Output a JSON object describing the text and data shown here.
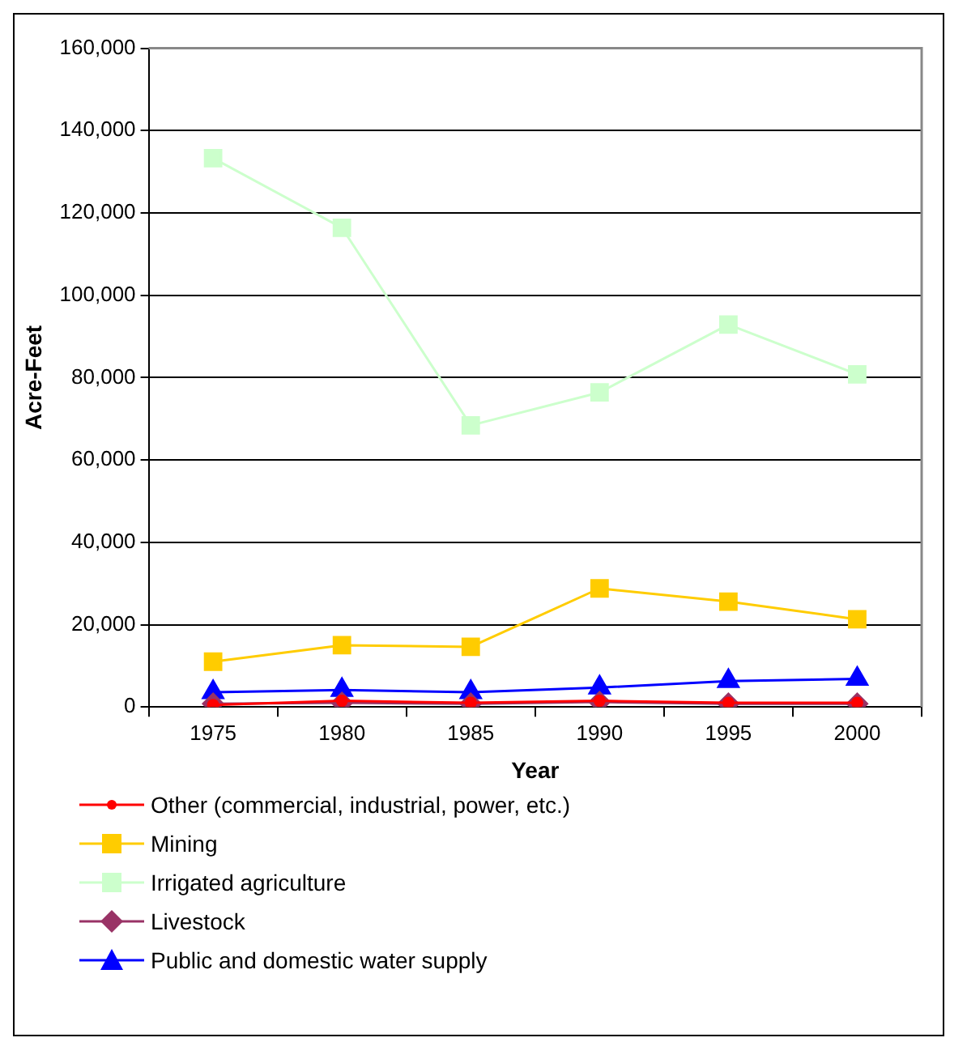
{
  "chart_data": {
    "type": "line",
    "xlabel": "Year",
    "ylabel": "Acre-Feet",
    "categories": [
      "1975",
      "1980",
      "1985",
      "1990",
      "1995",
      "2000"
    ],
    "ylim": [
      0,
      160000
    ],
    "yticks": [
      {
        "value": 0,
        "label": "0"
      },
      {
        "value": 20000,
        "label": "20,000"
      },
      {
        "value": 40000,
        "label": "40,000"
      },
      {
        "value": 60000,
        "label": "60,000"
      },
      {
        "value": 80000,
        "label": "80,000"
      },
      {
        "value": 100000,
        "label": "100,000"
      },
      {
        "value": 120000,
        "label": "120,000"
      },
      {
        "value": 140000,
        "label": "140,000"
      },
      {
        "value": 160000,
        "label": "160,000"
      }
    ],
    "grid": "y",
    "legend": "bottom",
    "series": [
      {
        "name": "Other (commercial, industrial, power, etc.)",
        "color": "#ff0000",
        "marker": "circle",
        "values": [
          500,
          1500,
          1000,
          1500,
          1000,
          1000
        ]
      },
      {
        "name": "Mining",
        "color": "#ffcc00",
        "marker": "square",
        "values": [
          11000,
          15000,
          14600,
          28800,
          25600,
          21300
        ]
      },
      {
        "name": "Irrigated agriculture",
        "color": "#ccffcc",
        "marker": "square",
        "values": [
          133300,
          116400,
          68400,
          76400,
          92900,
          80800
        ]
      },
      {
        "name": "Livestock",
        "color": "#993366",
        "marker": "diamond",
        "values": [
          800,
          1000,
          800,
          1200,
          800,
          800
        ]
      },
      {
        "name": "Public and domestic water supply",
        "color": "#0000ff",
        "marker": "triangle",
        "values": [
          3600,
          4100,
          3600,
          4700,
          6300,
          6800
        ]
      }
    ]
  }
}
